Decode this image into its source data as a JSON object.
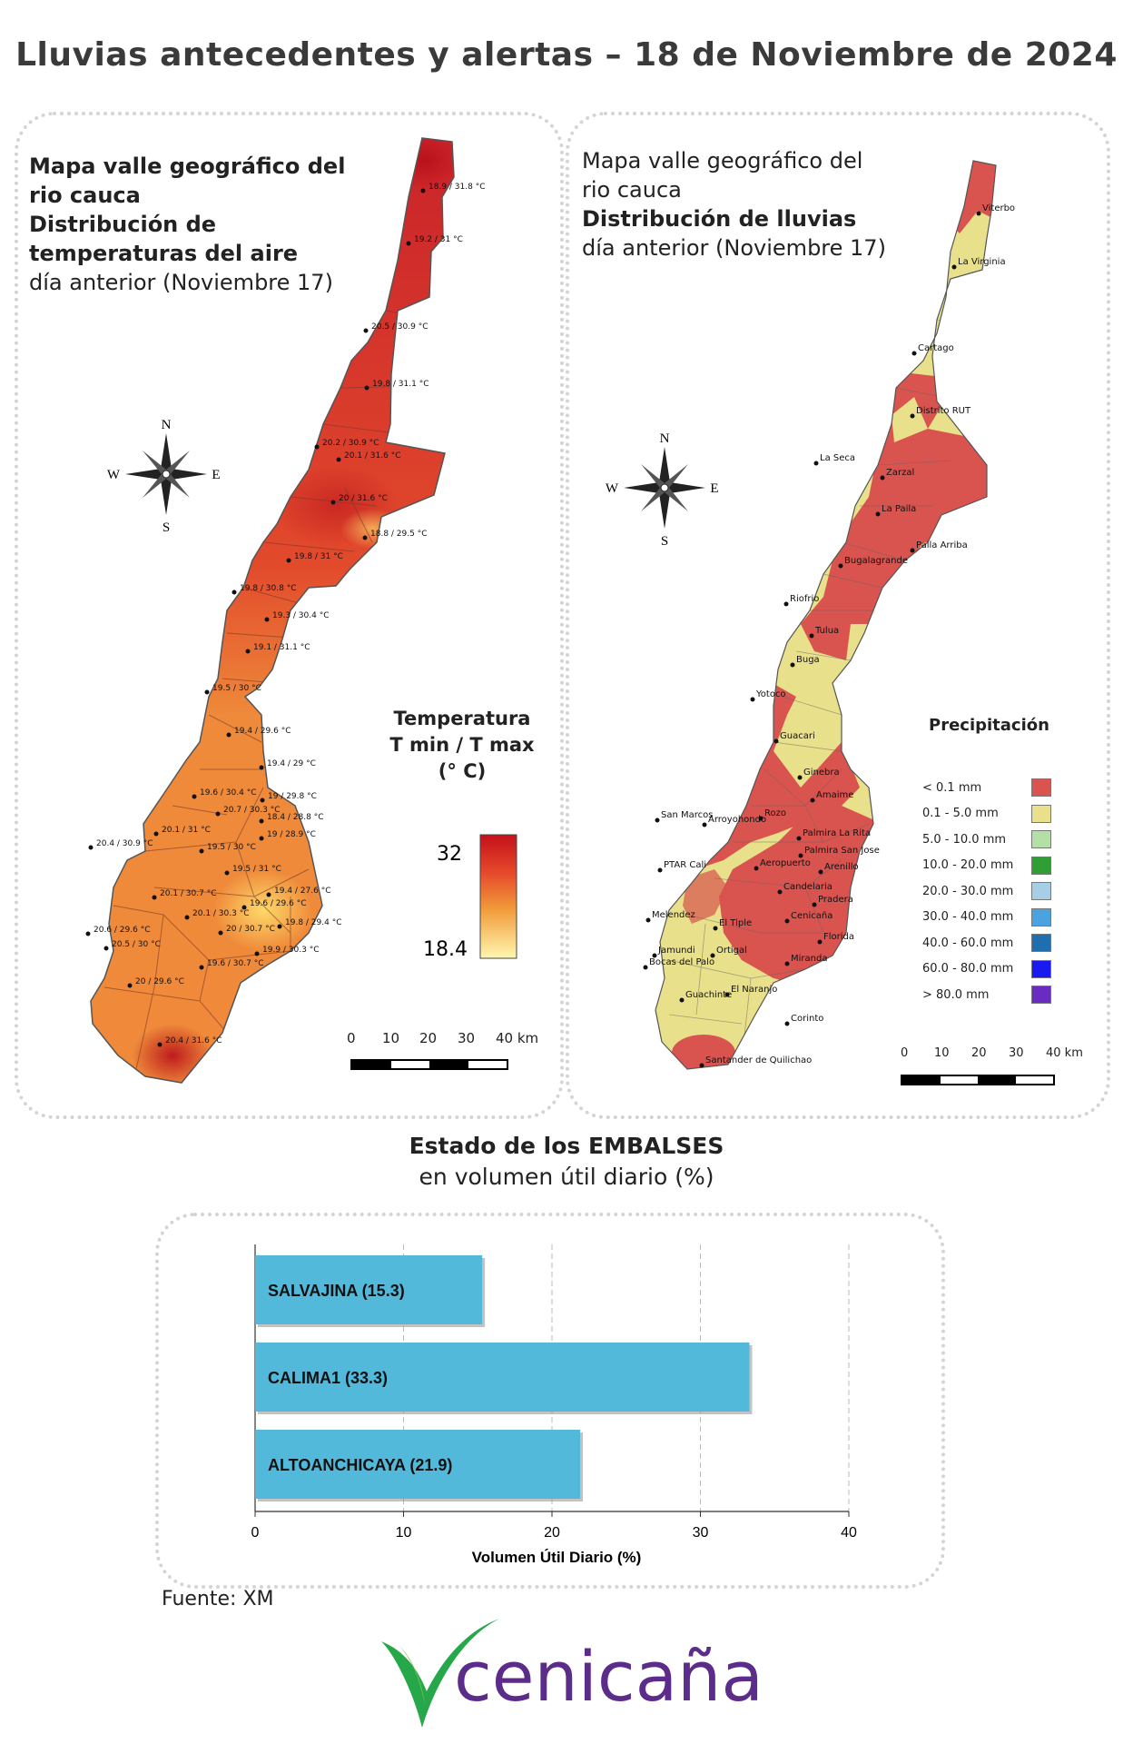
{
  "header": {
    "title": "Lluvias antecedentes y alertas – 18 de Noviembre de 2024"
  },
  "temperature_map": {
    "title_lines": [
      "Mapa valle geográfico del",
      "rio cauca",
      "Distribución de",
      "temperaturas del aire"
    ],
    "subtitle": "día anterior (Noviembre 17)",
    "compass": {
      "n": "N",
      "s": "S",
      "e": "E",
      "w": "W"
    },
    "legend_title_lines": [
      "Temperatura",
      "T min / T max",
      "(° C)"
    ],
    "legend_max": "32",
    "legend_min": "18.4",
    "scale_labels": [
      "0",
      "10",
      "20",
      "30",
      "40 km"
    ],
    "station_labels": [
      "18.9 / 31.8 °C",
      "19.2 / 31 °C",
      "20.5 / 30.9 °C",
      "19.8 / 31.1 °C",
      "20.2 / 30.9 °C",
      "20.1 / 31.6 °C",
      "20 / 31.6 °C",
      "18.8 / 29.5 °C",
      "19.8 / 31 °C",
      "19.8 / 30.8 °C",
      "19.3 / 30.4 °C",
      "19.1 / 31.1 °C",
      "19.5 / 30 °C",
      "19.4 / 29.6 °C",
      "19.4 / 29 °C",
      "19.6 / 30.4 °C",
      "19 / 29.8 °C",
      "20.7 / 30.3 °C",
      "18.4 / 28.8 °C",
      "20.1 / 31 °C",
      "19 / 28.9 °C",
      "20.4 / 30.9 °C",
      "19.5 / 30 °C",
      "19.5 / 31 °C",
      "19.4 / 27.6 °C",
      "20.1 / 30.7 °C",
      "19.6 / 29.6 °C",
      "20.1 / 30.3 °C",
      "19.8 / 29.4 °C",
      "20.6 / 29.6 °C",
      "20 / 30.7 °C",
      "20.5 / 30 °C",
      "19.9 / 30.3 °C",
      "19.6 / 30.7 °C",
      "20 / 29.6 °C",
      "20.4 / 31.6 °C"
    ]
  },
  "rain_map": {
    "title_lines": [
      "Mapa valle geográfico del",
      "rio cauca",
      "Distribución de lluvias"
    ],
    "subtitle": "día anterior (Noviembre 17)",
    "compass": {
      "n": "N",
      "s": "S",
      "e": "E",
      "w": "W"
    },
    "legend_title": "Precipitación",
    "legend_items": [
      {
        "label": "< 0.1 mm",
        "color": "#d9534f"
      },
      {
        "label": "0.1 - 5.0 mm",
        "color": "#e8e08a"
      },
      {
        "label": "5.0 - 10.0 mm",
        "color": "#b4e0a8"
      },
      {
        "label": "10.0 - 20.0 mm",
        "color": "#2e9e35"
      },
      {
        "label": "20.0 - 30.0 mm",
        "color": "#a6cfe6"
      },
      {
        "label": "30.0 - 40.0 mm",
        "color": "#4aa3df"
      },
      {
        "label": "40.0 - 60.0 mm",
        "color": "#1f6fb0"
      },
      {
        "label": "60.0 - 80.0 mm",
        "color": "#1a1af0"
      },
      {
        "label": "> 80.0 mm",
        "color": "#6a2bc2"
      }
    ],
    "scale_labels": [
      "0",
      "10",
      "20",
      "30",
      "40 km"
    ],
    "places": [
      "Viterbo",
      "La Virginia",
      "Cartago",
      "Distrito RUT",
      "La Seca",
      "Zarzal",
      "La Paila",
      "Paila Arriba",
      "Bugalagrande",
      "Riofrio",
      "Tulua",
      "Buga",
      "Yotoco",
      "Guacari",
      "Ginebra",
      "Amaime",
      "San Marcos",
      "Rozo",
      "Palmira La Rita",
      "Arroyohondo",
      "Palmira San Jose",
      "PTAR Cali",
      "Aeropuerto",
      "Arenillo",
      "Candelaria",
      "Pradera",
      "Melendez",
      "El Tiple",
      "Cenicaña",
      "Florida",
      "Jamundi",
      "Bocas del Palo",
      "Ortigal",
      "Miranda",
      "El Naranjo",
      "Guachinte",
      "Corinto",
      "Santander de Quilichao"
    ]
  },
  "reservoirs": {
    "title": "Estado de los EMBALSES",
    "subtitle": "en volumen útil diario (%)"
  },
  "chart_data": {
    "type": "bar",
    "orientation": "horizontal",
    "categories": [
      "SALVAJINA (15.3)",
      "CALIMA1 (33.3)",
      "ALTOANCHICAYA (21.9)"
    ],
    "values": [
      15.3,
      33.3,
      21.9
    ],
    "xlabel": "Volumen Útil Diario (%)",
    "ylabel": "",
    "xlim": [
      0,
      40
    ],
    "x_ticks": [
      "0",
      "10",
      "20",
      "30",
      "40"
    ],
    "bar_color": "#52b9db",
    "grid": true
  },
  "footer": {
    "source": "Fuente: XM",
    "logo_text": "cenicaña"
  }
}
